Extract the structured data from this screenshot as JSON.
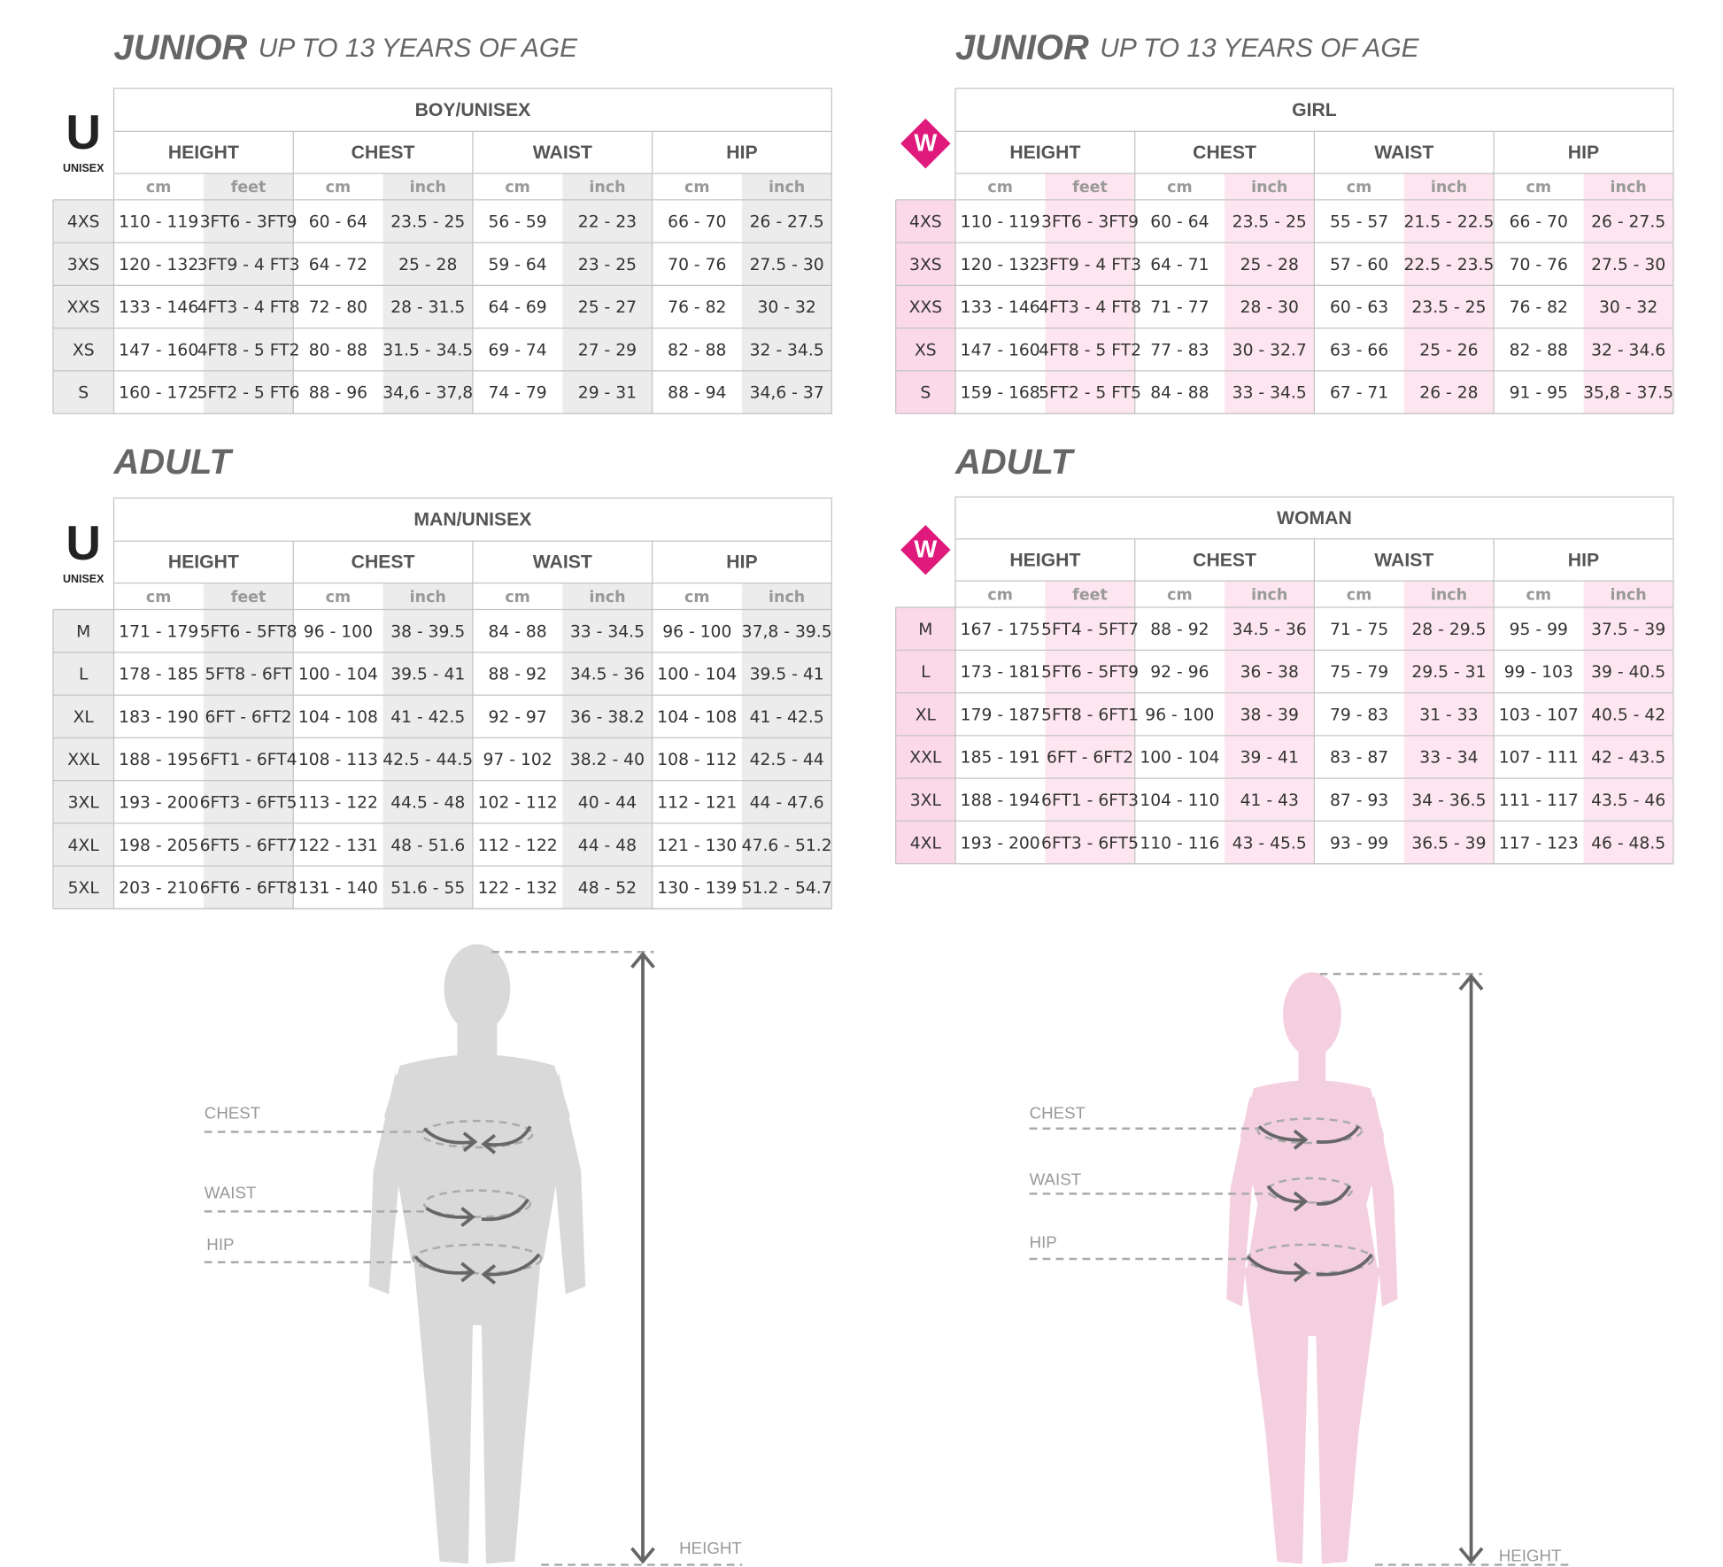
{
  "sections": [
    {
      "title": "JUNIOR",
      "subtitle": "UP TO 13 YEARS OF AGE",
      "icon": "U",
      "icon_caption": "UNISEX",
      "group": "BOY/UNISEX",
      "columns": [
        "HEIGHT",
        "CHEST",
        "WAIST",
        "HIP"
      ],
      "units": [
        "cm",
        "feet",
        "cm",
        "inch",
        "cm",
        "inch",
        "cm",
        "inch"
      ],
      "rows": [
        [
          "4XS",
          "110 - 119",
          "3FT6 - 3FT9",
          "60 - 64",
          "23.5 - 25",
          "56 - 59",
          "22 - 23",
          "66 - 70",
          "26 - 27.5"
        ],
        [
          "3XS",
          "120 - 132",
          "3FT9 - 4 FT3",
          "64 - 72",
          "25 - 28",
          "59 - 64",
          "23 - 25",
          "70 - 76",
          "27.5 - 30"
        ],
        [
          "XXS",
          "133 - 146",
          "4FT3 - 4 FT8",
          "72 - 80",
          "28 - 31.5",
          "64 - 69",
          "25 - 27",
          "76 - 82",
          "30 - 32"
        ],
        [
          "XS",
          "147 - 160",
          "4FT8 - 5 FT2",
          "80 - 88",
          "31.5 - 34.5",
          "69 - 74",
          "27 - 29",
          "82 - 88",
          "32 - 34.5"
        ],
        [
          "S",
          "160 - 172",
          "5FT2 - 5 FT6",
          "88 - 96",
          "34,6 - 37,8",
          "74 - 79",
          "29 - 31",
          "88 - 94",
          "34,6 - 37"
        ]
      ]
    },
    {
      "title": "JUNIOR",
      "subtitle": "UP TO 13 YEARS OF AGE",
      "icon": "W",
      "group": "GIRL",
      "columns": [
        "HEIGHT",
        "CHEST",
        "WAIST",
        "HIP"
      ],
      "units": [
        "cm",
        "feet",
        "cm",
        "inch",
        "cm",
        "inch",
        "cm",
        "inch"
      ],
      "rows": [
        [
          "4XS",
          "110 - 119",
          "3FT6 - 3FT9",
          "60 - 64",
          "23.5 - 25",
          "55 - 57",
          "21.5 - 22.5",
          "66 - 70",
          "26 - 27.5"
        ],
        [
          "3XS",
          "120 - 132",
          "3FT9 - 4 FT3",
          "64 - 71",
          "25 - 28",
          "57 - 60",
          "22.5 - 23.5",
          "70 - 76",
          "27.5 - 30"
        ],
        [
          "XXS",
          "133 - 146",
          "4FT3 - 4 FT8",
          "71 - 77",
          "28 - 30",
          "60 - 63",
          "23.5 - 25",
          "76 - 82",
          "30 - 32"
        ],
        [
          "XS",
          "147 - 160",
          "4FT8 - 5 FT2",
          "77 - 83",
          "30 - 32.7",
          "63 - 66",
          "25 - 26",
          "82 - 88",
          "32 - 34.6"
        ],
        [
          "S",
          "159 - 168",
          "5FT2 - 5 FT5",
          "84 - 88",
          "33 - 34.5",
          "67 - 71",
          "26 - 28",
          "91 - 95",
          "35,8 - 37.5"
        ]
      ]
    },
    {
      "title": "ADULT",
      "icon": "U",
      "icon_caption": "UNISEX",
      "group": "MAN/UNISEX",
      "columns": [
        "HEIGHT",
        "CHEST",
        "WAIST",
        "HIP"
      ],
      "units": [
        "cm",
        "feet",
        "cm",
        "inch",
        "cm",
        "inch",
        "cm",
        "inch"
      ],
      "rows": [
        [
          "M",
          "171 - 179",
          "5FT6 - 5FT8",
          "96 - 100",
          "38 - 39.5",
          "84 - 88",
          "33 - 34.5",
          "96 - 100",
          "37,8 - 39.5"
        ],
        [
          "L",
          "178 - 185",
          "5FT8 - 6FT",
          "100 - 104",
          "39.5 - 41",
          "88 - 92",
          "34.5 - 36",
          "100 - 104",
          "39.5 - 41"
        ],
        [
          "XL",
          "183 - 190",
          "6FT - 6FT2",
          "104 - 108",
          "41 - 42.5",
          "92 - 97",
          "36 - 38.2",
          "104 - 108",
          "41 - 42.5"
        ],
        [
          "XXL",
          "188 - 195",
          "6FT1 - 6FT4",
          "108 - 113",
          "42.5 - 44.5",
          "97 - 102",
          "38.2 - 40",
          "108 - 112",
          "42.5 - 44"
        ],
        [
          "3XL",
          "193 - 200",
          "6FT3 - 6FT5",
          "113 - 122",
          "44.5 - 48",
          "102 - 112",
          "40 - 44",
          "112 - 121",
          "44 - 47.6"
        ],
        [
          "4XL",
          "198 - 205",
          "6FT5 - 6FT7",
          "122 - 131",
          "48 - 51.6",
          "112 - 122",
          "44 - 48",
          "121 - 130",
          "47.6 - 51.2"
        ],
        [
          "5XL",
          "203 - 210",
          "6FT6 - 6FT8",
          "131 - 140",
          "51.6 - 55",
          "122 - 132",
          "48 - 52",
          "130 - 139",
          "51.2 - 54.7"
        ]
      ]
    },
    {
      "title": "ADULT",
      "icon": "W",
      "group": "WOMAN",
      "columns": [
        "HEIGHT",
        "CHEST",
        "WAIST",
        "HIP"
      ],
      "units": [
        "cm",
        "feet",
        "cm",
        "inch",
        "cm",
        "inch",
        "cm",
        "inch"
      ],
      "rows": [
        [
          "M",
          "167 - 175",
          "5FT4 - 5FT7",
          "88 - 92",
          "34.5 - 36",
          "71 - 75",
          "28 - 29.5",
          "95 - 99",
          "37.5 - 39"
        ],
        [
          "L",
          "173 - 181",
          "5FT6 - 5FT9",
          "92 - 96",
          "36 - 38",
          "75 - 79",
          "29.5 - 31",
          "99 - 103",
          "39 - 40.5"
        ],
        [
          "XL",
          "179 - 187",
          "5FT8 - 6FT1",
          "96 - 100",
          "38 - 39",
          "79 - 83",
          "31 - 33",
          "103 - 107",
          "40.5 - 42"
        ],
        [
          "XXL",
          "185 - 191",
          "6FT - 6FT2",
          "100 - 104",
          "39 - 41",
          "83 - 87",
          "33 - 34",
          "107 - 111",
          "42 - 43.5"
        ],
        [
          "3XL",
          "188 - 194",
          "6FT1 - 6FT3",
          "104 - 110",
          "41 - 43",
          "87 - 93",
          "34 - 36.5",
          "111 - 117",
          "43.5 - 46"
        ],
        [
          "4XL",
          "193 - 200",
          "6FT3 - 6FT5",
          "110 - 116",
          "43 - 45.5",
          "93 - 99",
          "36.5 - 39",
          "117 - 123",
          "46 - 48.5"
        ]
      ]
    }
  ],
  "figures": [
    {
      "chest": "CHEST",
      "waist": "WAIST",
      "hip": "HIP",
      "height": "HEIGHT"
    },
    {
      "chest": "CHEST",
      "waist": "WAIST",
      "hip": "HIP",
      "height": "HEIGHT"
    }
  ]
}
